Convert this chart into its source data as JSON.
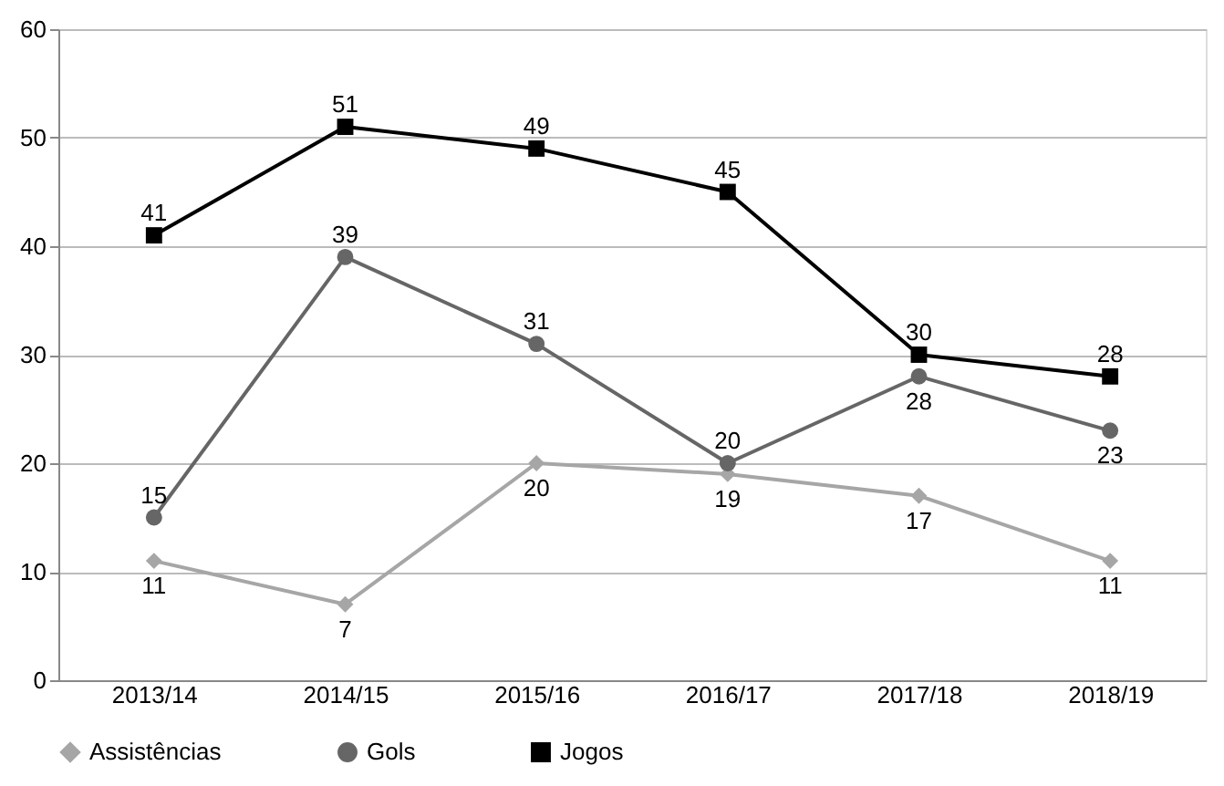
{
  "chart_data": {
    "type": "line",
    "categories": [
      "2013/14",
      "2014/15",
      "2015/16",
      "2016/17",
      "2017/18",
      "2018/19"
    ],
    "series": [
      {
        "name": "Assistências",
        "color": "#a6a6a6",
        "marker": "diamond",
        "values": [
          11,
          7,
          20,
          19,
          17,
          11
        ]
      },
      {
        "name": "Gols",
        "color": "#666666",
        "marker": "circle",
        "values": [
          15,
          39,
          31,
          20,
          28,
          23
        ]
      },
      {
        "name": "Jogos",
        "color": "#000000",
        "marker": "square",
        "values": [
          41,
          51,
          49,
          45,
          30,
          28
        ]
      }
    ],
    "ylim": [
      0,
      60
    ],
    "yticks": [
      0,
      10,
      20,
      30,
      40,
      50,
      60
    ],
    "grid": "y",
    "legend": "bottom",
    "data_labels": true,
    "line_style": "solid"
  }
}
